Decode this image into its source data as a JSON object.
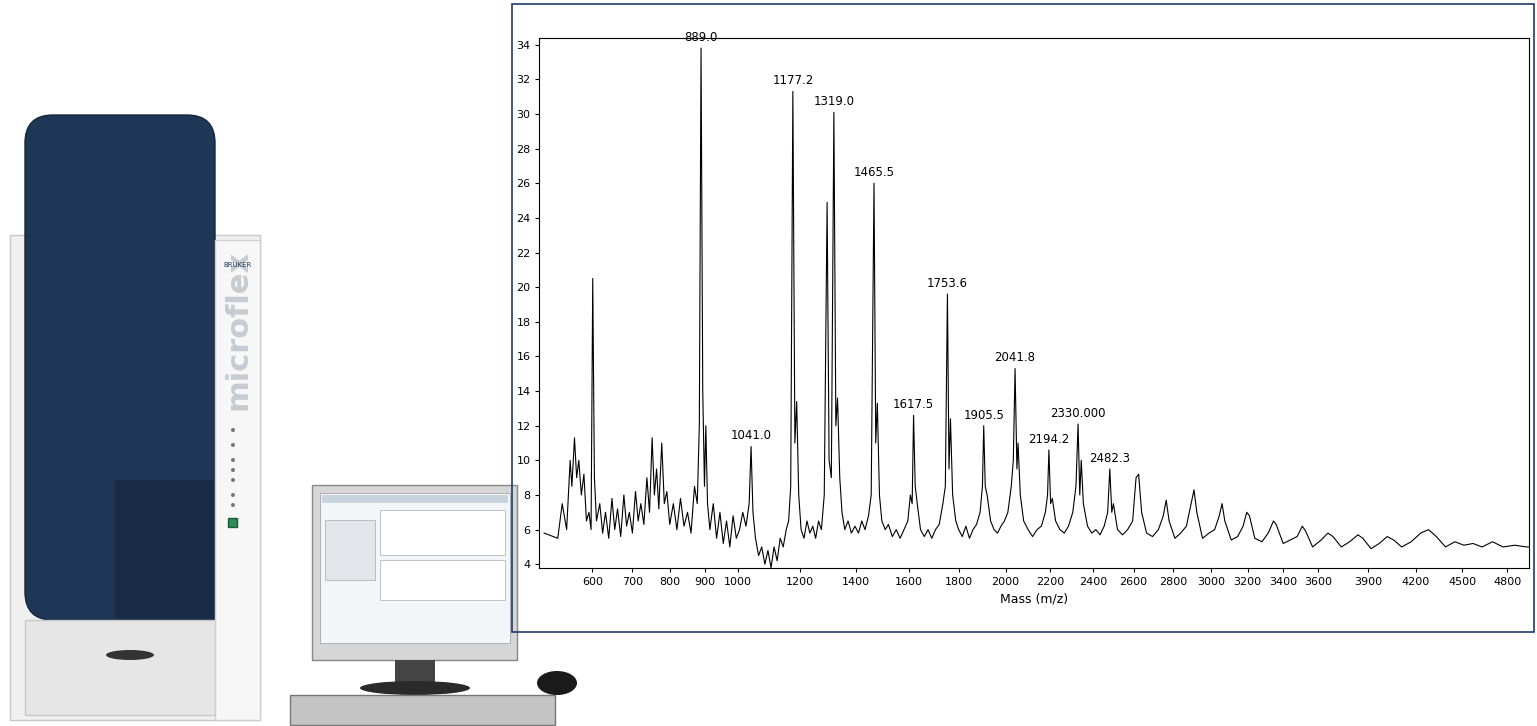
{
  "chart_data": {
    "type": "line",
    "x_label": "Mass (m/z)",
    "color": "#000000",
    "x": [
      490,
      520,
      530,
      540,
      548,
      552,
      558,
      563,
      568,
      574,
      580,
      586,
      592,
      597,
      601,
      605,
      610,
      618,
      625,
      632,
      640,
      648,
      655,
      662,
      670,
      678,
      685,
      692,
      700,
      708,
      715,
      722,
      730,
      738,
      745,
      752,
      758,
      764,
      770,
      778,
      785,
      792,
      800,
      810,
      820,
      830,
      840,
      850,
      860,
      870,
      878,
      884,
      889.0,
      894,
      899,
      903,
      908,
      915,
      925,
      935,
      945,
      955,
      965,
      975,
      985,
      995,
      1005,
      1015,
      1025,
      1035,
      1041.0,
      1047,
      1055,
      1065,
      1075,
      1085,
      1095,
      1105,
      1115,
      1125,
      1135,
      1145,
      1155,
      1163,
      1170,
      1177.2,
      1184,
      1190,
      1197,
      1205,
      1215,
      1225,
      1235,
      1245,
      1255,
      1265,
      1275,
      1285,
      1295,
      1302,
      1310,
      1319.0,
      1326,
      1332,
      1340,
      1348,
      1358,
      1370,
      1382,
      1395,
      1408,
      1420,
      1432,
      1445,
      1455,
      1465.5,
      1472,
      1478,
      1486,
      1495,
      1508,
      1520,
      1535,
      1550,
      1565,
      1580,
      1595,
      1605,
      1612,
      1617.5,
      1624,
      1632,
      1645,
      1660,
      1675,
      1690,
      1705,
      1720,
      1735,
      1745,
      1753.6,
      1760,
      1766,
      1775,
      1788,
      1800,
      1815,
      1830,
      1845,
      1860,
      1875,
      1890,
      1900,
      1905.5,
      1912,
      1920,
      1935,
      1950,
      1965,
      1980,
      1995,
      2010,
      2025,
      2034,
      2041.8,
      2050,
      2055,
      2065,
      2080,
      2100,
      2120,
      2140,
      2160,
      2178,
      2188,
      2194.2,
      2202,
      2210,
      2225,
      2245,
      2265,
      2285,
      2305,
      2320,
      2330.0,
      2338,
      2345,
      2355,
      2375,
      2395,
      2415,
      2435,
      2455,
      2472,
      2482.3,
      2492,
      2500,
      2520,
      2545,
      2570,
      2595,
      2612,
      2625,
      2640,
      2665,
      2695,
      2725,
      2750,
      2765,
      2780,
      2810,
      2840,
      2870,
      2895,
      2910,
      2925,
      2955,
      2990,
      3020,
      3045,
      3060,
      3075,
      3110,
      3145,
      3175,
      3195,
      3210,
      3240,
      3280,
      3315,
      3345,
      3360,
      3400,
      3440,
      3480,
      3510,
      3530,
      3570,
      3620,
      3660,
      3690,
      3740,
      3790,
      3840,
      3870,
      3920,
      3970,
      4020,
      4060,
      4110,
      4170,
      4230,
      4280,
      4330,
      4390,
      4450,
      4510,
      4570,
      4630,
      4700,
      4770,
      4850,
      4930,
      5000
    ],
    "values": [
      5.8,
      5.5,
      7.5,
      6.0,
      10.0,
      8.5,
      11.3,
      9.0,
      10.0,
      8.0,
      9.2,
      6.5,
      7.0,
      6.0,
      20.5,
      9.0,
      6.5,
      7.5,
      5.8,
      7.0,
      5.5,
      7.8,
      6.0,
      7.2,
      5.6,
      8.0,
      6.2,
      7.0,
      5.8,
      8.2,
      6.5,
      7.5,
      6.3,
      9.0,
      7.0,
      11.3,
      8.0,
      9.5,
      7.2,
      11.0,
      7.5,
      8.2,
      6.3,
      7.5,
      6.0,
      7.8,
      6.2,
      7.0,
      5.8,
      8.5,
      7.5,
      12.0,
      33.8,
      14.0,
      8.5,
      12.0,
      7.5,
      6.0,
      7.5,
      5.5,
      7.0,
      5.2,
      6.5,
      5.0,
      6.8,
      5.5,
      6.0,
      7.0,
      6.2,
      7.5,
      10.8,
      7.0,
      5.5,
      4.5,
      5.0,
      4.0,
      4.8,
      3.8,
      5.0,
      4.2,
      5.5,
      5.0,
      6.0,
      6.5,
      8.5,
      31.3,
      11.0,
      13.4,
      8.0,
      6.0,
      5.5,
      6.5,
      5.8,
      6.2,
      5.5,
      6.5,
      6.0,
      8.0,
      24.9,
      10.0,
      9.0,
      30.1,
      12.0,
      13.6,
      9.0,
      7.0,
      6.0,
      6.5,
      5.8,
      6.2,
      5.8,
      6.5,
      6.0,
      6.8,
      8.0,
      26.0,
      11.0,
      13.3,
      8.0,
      6.5,
      6.0,
      6.3,
      5.6,
      6.0,
      5.5,
      6.0,
      6.5,
      8.0,
      7.5,
      12.6,
      8.5,
      7.5,
      6.0,
      5.6,
      6.0,
      5.5,
      6.0,
      6.3,
      7.5,
      8.5,
      19.6,
      9.5,
      12.4,
      8.0,
      6.5,
      6.0,
      5.6,
      6.2,
      5.5,
      6.0,
      6.3,
      7.0,
      8.5,
      12.0,
      8.5,
      8.0,
      6.5,
      6.0,
      5.8,
      6.2,
      6.5,
      7.0,
      8.5,
      10.0,
      15.3,
      9.5,
      11.0,
      8.0,
      6.5,
      6.0,
      5.6,
      6.0,
      6.2,
      7.0,
      8.0,
      10.6,
      7.5,
      7.8,
      6.5,
      6.0,
      5.8,
      6.2,
      7.0,
      8.5,
      12.1,
      8.0,
      10.0,
      7.5,
      6.2,
      5.8,
      6.0,
      5.7,
      6.2,
      7.0,
      9.5,
      7.0,
      7.5,
      6.0,
      5.7,
      6.0,
      6.5,
      9.0,
      9.2,
      7.0,
      5.8,
      5.6,
      6.0,
      6.8,
      7.7,
      6.5,
      5.5,
      5.8,
      6.2,
      7.5,
      8.3,
      7.0,
      5.5,
      5.8,
      6.0,
      6.8,
      7.5,
      6.5,
      5.4,
      5.6,
      6.2,
      7.0,
      6.8,
      5.5,
      5.3,
      5.8,
      6.5,
      6.3,
      5.2,
      5.4,
      5.6,
      6.2,
      5.9,
      5.0,
      5.4,
      5.8,
      5.6,
      5.0,
      5.3,
      5.7,
      5.5,
      4.9,
      5.2,
      5.6,
      5.4,
      5.0,
      5.3,
      5.8,
      6.0,
      5.6,
      5.0,
      5.3,
      5.1,
      5.2,
      5.0,
      5.3,
      5.0,
      5.1,
      5.0,
      5.0
    ],
    "xlim": [
      480,
      4950
    ],
    "ylim": [
      3.8,
      34.4
    ],
    "xticks": [
      600,
      700,
      800,
      900,
      1000,
      1200,
      1400,
      1600,
      1800,
      2000,
      2200,
      2400,
      2600,
      2800,
      3000,
      3200,
      3400,
      3600,
      3900,
      4200,
      4500,
      4800
    ],
    "yticks": [
      4,
      6,
      8,
      10,
      12,
      14,
      16,
      18,
      20,
      22,
      24,
      26,
      28,
      30,
      32,
      34
    ],
    "annotations": [
      {
        "text": "889.0",
        "x": 889.0,
        "y": 33.8
      },
      {
        "text": "1041.0",
        "x": 1041.0,
        "y": 10.8
      },
      {
        "text": "1177.2",
        "x": 1177.2,
        "y": 31.3
      },
      {
        "text": "1319.0",
        "x": 1319.0,
        "y": 30.1
      },
      {
        "text": "1465.5",
        "x": 1465.5,
        "y": 26.0
      },
      {
        "text": "1617.5",
        "x": 1617.5,
        "y": 12.6
      },
      {
        "text": "1753.6",
        "x": 1753.6,
        "y": 19.6
      },
      {
        "text": "1905.5",
        "x": 1905.5,
        "y": 12.0
      },
      {
        "text": "2041.8",
        "x": 2041.8,
        "y": 15.3
      },
      {
        "text": "2194.2",
        "x": 2194.2,
        "y": 10.6
      },
      {
        "text": "2330.000",
        "x": 2330.0,
        "y": 12.1
      },
      {
        "text": "2482.3",
        "x": 2482.3,
        "y": 9.5
      }
    ]
  },
  "instrument": {
    "brand": "BRUKER",
    "model": "microflex"
  }
}
